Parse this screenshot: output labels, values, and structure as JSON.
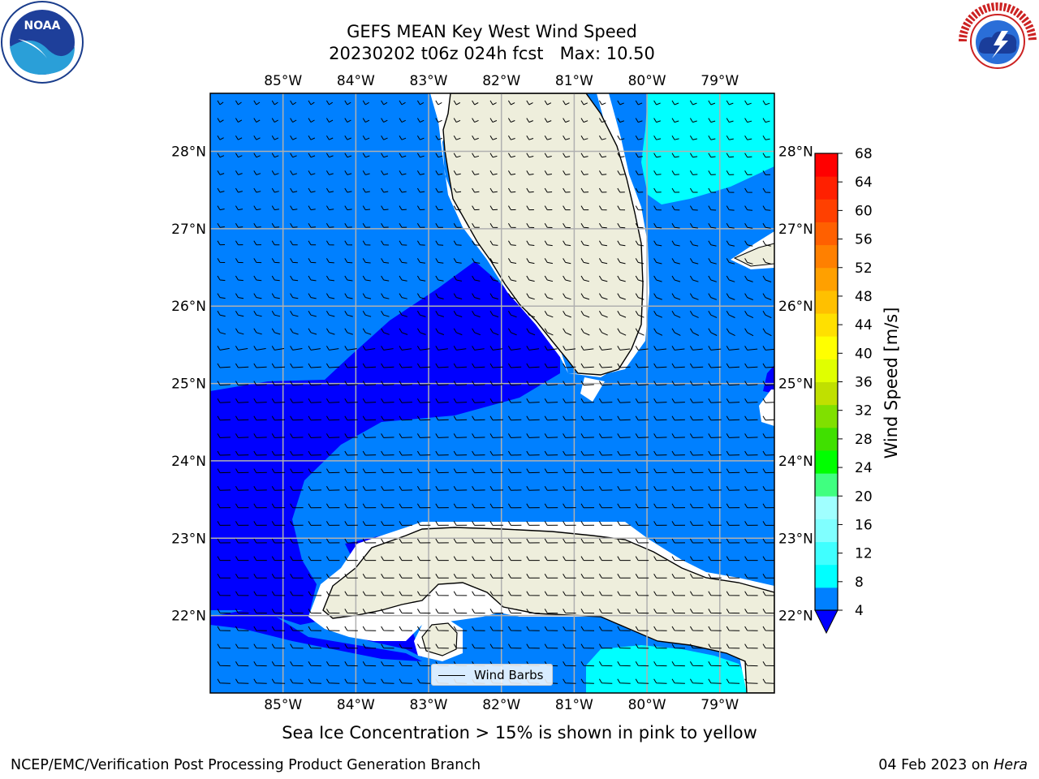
{
  "header": {
    "title_line1": "GEFS MEAN Key West Wind Speed",
    "title_line2": "20230202 t06z 024h fcst   Max: 10.50"
  },
  "logos": {
    "left": "noaa-logo",
    "left_text": "NOAA",
    "right": "nws-logo",
    "right_text": "NATIONAL WEATHER SERVICE"
  },
  "map": {
    "lon_ticks": [
      "85°W",
      "84°W",
      "83°W",
      "82°W",
      "81°W",
      "80°W",
      "79°W"
    ],
    "lat_ticks": [
      "28°N",
      "27°N",
      "26°N",
      "25°N",
      "24°N",
      "23°N",
      "22°N"
    ],
    "lon_values": [
      -85,
      -84,
      -83,
      -82,
      -81,
      -80,
      -79
    ],
    "lat_values": [
      28,
      27,
      26,
      25,
      24,
      23,
      22
    ],
    "extent": {
      "lon_min": -86.0,
      "lon_max": -78.25,
      "lat_min": 21.0,
      "lat_max": 28.75
    },
    "colors": {
      "ocean_4_8": "#0080ff",
      "ocean_0_4": "#0000ff",
      "ocean_8_12": "#00ffff",
      "land": "#eeeedc",
      "grid": "#b0b0b0"
    }
  },
  "legend": {
    "label": "Wind Barbs"
  },
  "colorbar": {
    "label": "Wind Speed [m/s]",
    "ticks": [
      "4",
      "8",
      "12",
      "16",
      "20",
      "24",
      "28",
      "32",
      "36",
      "40",
      "44",
      "48",
      "52",
      "56",
      "60",
      "64",
      "68"
    ],
    "tick_values": [
      4,
      8,
      12,
      16,
      20,
      24,
      28,
      32,
      36,
      40,
      44,
      48,
      52,
      56,
      60,
      64,
      68
    ],
    "colors": [
      "#0080ff",
      "#00ffff",
      "#40ffff",
      "#80ffff",
      "#a0ffff",
      "#40ff80",
      "#00ff00",
      "#40e000",
      "#80e000",
      "#c0e000",
      "#e0ff00",
      "#ffff00",
      "#ffe000",
      "#ffc000",
      "#ffa000",
      "#ff8000",
      "#ff6000",
      "#ff4000",
      "#ff2000",
      "#ff0000"
    ],
    "under_color": "#0000ff"
  },
  "caption": "Sea Ice Concentration > 15% is shown in pink to yellow",
  "footer": {
    "left": "NCEP/EMC/Verification Post Processing Product Generation Branch",
    "right_date": "04 Feb 2023 on ",
    "right_host": "Hera"
  }
}
